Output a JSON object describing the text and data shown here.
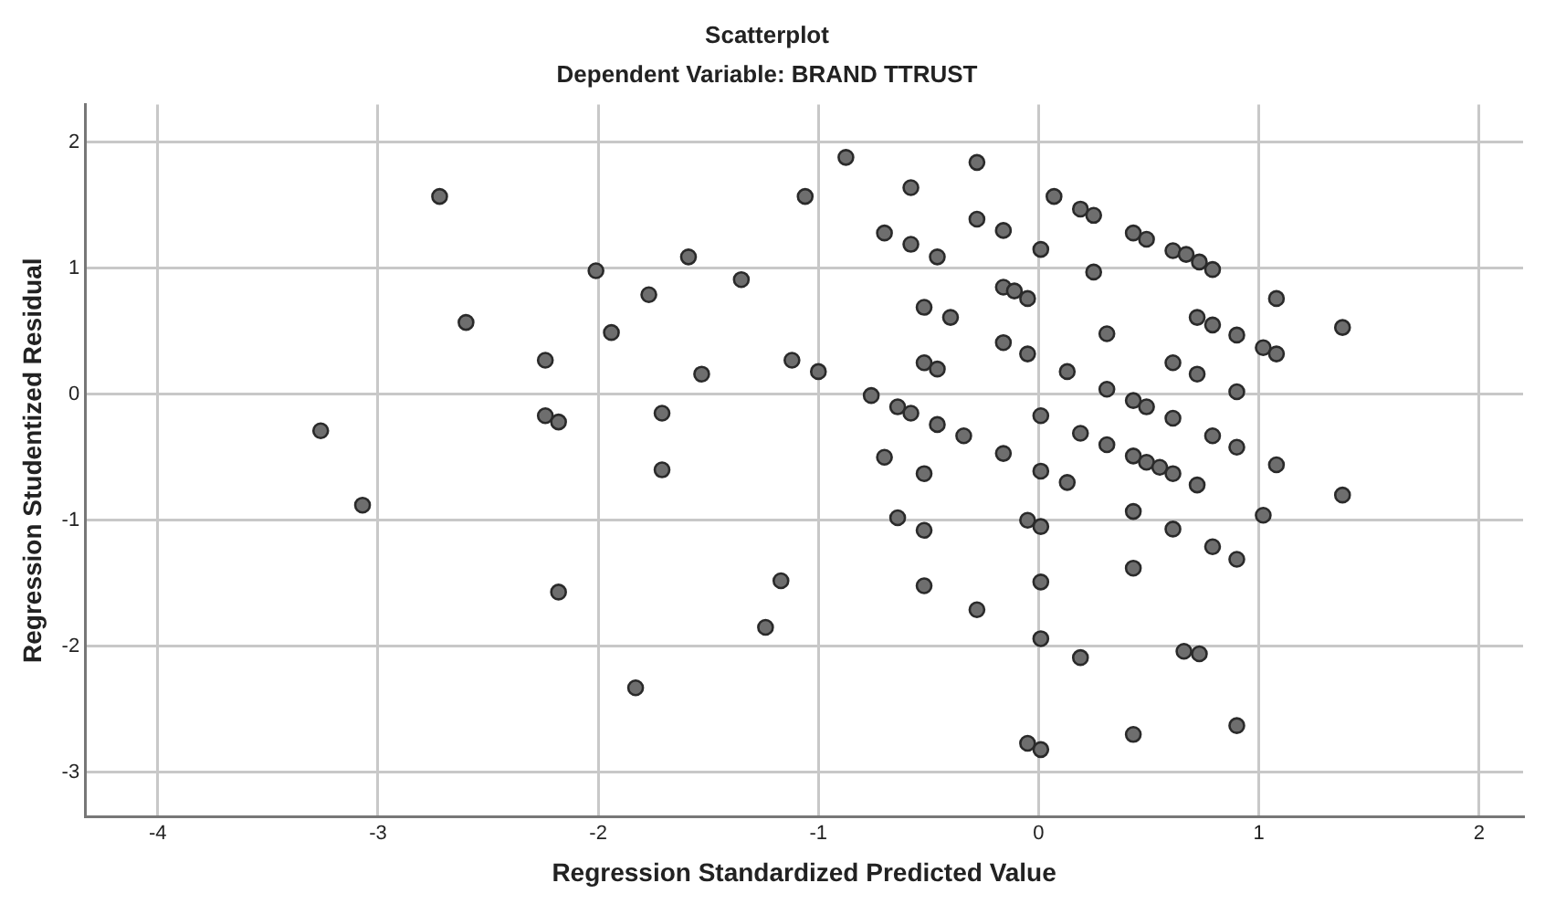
{
  "chart_data": {
    "type": "scatter",
    "title": "Scatterplot",
    "subtitle": "Dependent Variable: BRAND TTRUST",
    "xlabel": "Regression Standardized Predicted Value",
    "ylabel": "Regression Studentized Residual",
    "xlim": [
      -4.33,
      2.2
    ],
    "ylim": [
      -3.35,
      2.3
    ],
    "xticks": [
      -4,
      -3,
      -2,
      -1,
      0,
      1,
      2
    ],
    "yticks": [
      -3,
      -2,
      -1,
      0,
      1,
      2
    ],
    "grid": true,
    "legend": false,
    "marker": "circle",
    "series": [
      {
        "color": "#6e6e6e",
        "x": [
          -3.26,
          -3.07,
          -2.72,
          -2.6,
          -2.24,
          -2.24,
          -2.18,
          -2.01,
          -1.94,
          -1.77,
          -1.71,
          -1.71,
          -1.59,
          -1.53,
          -1.35,
          -2.18,
          -1.83,
          -1.24,
          -0.875,
          -1.06,
          -0.58,
          -0.28,
          -0.7,
          -0.58,
          -0.46,
          -0.28,
          -0.16,
          0.01,
          0.07,
          0.19,
          0.25,
          0.43,
          0.49,
          0.61,
          0.67,
          0.73,
          0.79,
          0.25,
          -0.16,
          -0.11,
          -0.05,
          -0.52,
          -0.4,
          1.08,
          0.31,
          0.72,
          0.79,
          0.9,
          1.38,
          1.02,
          1.08,
          -0.16,
          -0.05,
          0.61,
          0.72,
          -1.12,
          -1.0,
          -0.52,
          -0.46,
          0.13,
          0.31,
          0.9,
          -0.76,
          -0.64,
          -0.58,
          -0.46,
          -0.34,
          0.01,
          0.19,
          0.31,
          0.43,
          0.49,
          0.61,
          0.79,
          0.9,
          -0.7,
          -0.52,
          -0.16,
          0.01,
          0.13,
          0.43,
          0.49,
          0.55,
          0.61,
          0.72,
          1.08,
          1.38,
          -0.64,
          -0.52,
          -0.05,
          0.01,
          0.43,
          0.61,
          1.02,
          0.79,
          0.9,
          0.43,
          -1.17,
          -0.52,
          0.01,
          -0.28,
          0.01,
          0.19,
          0.66,
          0.73,
          0.9,
          0.43,
          -0.05,
          0.01
        ],
        "values": [
          -0.29,
          -0.88,
          1.57,
          0.57,
          0.27,
          -0.17,
          -0.22,
          0.98,
          0.49,
          0.79,
          -0.15,
          -0.6,
          1.09,
          0.16,
          0.91,
          -1.57,
          -2.33,
          -1.85,
          1.88,
          1.57,
          1.64,
          1.84,
          1.28,
          1.19,
          1.09,
          1.39,
          1.3,
          1.15,
          1.57,
          1.47,
          1.42,
          1.28,
          1.23,
          1.14,
          1.11,
          1.05,
          0.99,
          0.97,
          0.85,
          0.82,
          0.76,
          0.69,
          0.61,
          0.76,
          0.48,
          0.61,
          0.55,
          0.47,
          0.53,
          0.37,
          0.32,
          0.41,
          0.32,
          0.25,
          0.16,
          0.27,
          0.18,
          0.25,
          0.2,
          0.18,
          0.04,
          0.02,
          -0.01,
          -0.1,
          -0.15,
          -0.24,
          -0.33,
          -0.17,
          -0.31,
          -0.4,
          -0.05,
          -0.1,
          -0.19,
          -0.33,
          -0.42,
          -0.5,
          -0.63,
          -0.47,
          -0.61,
          -0.7,
          -0.49,
          -0.54,
          -0.58,
          -0.63,
          -0.72,
          -0.56,
          -0.8,
          -0.98,
          -1.08,
          -1.0,
          -1.05,
          -0.93,
          -1.07,
          -0.96,
          -1.21,
          -1.31,
          -1.38,
          -1.48,
          -1.52,
          -1.49,
          -1.71,
          -1.94,
          -2.09,
          -2.04,
          -2.06,
          -2.63,
          -2.7,
          -2.77,
          -2.82
        ]
      }
    ]
  }
}
